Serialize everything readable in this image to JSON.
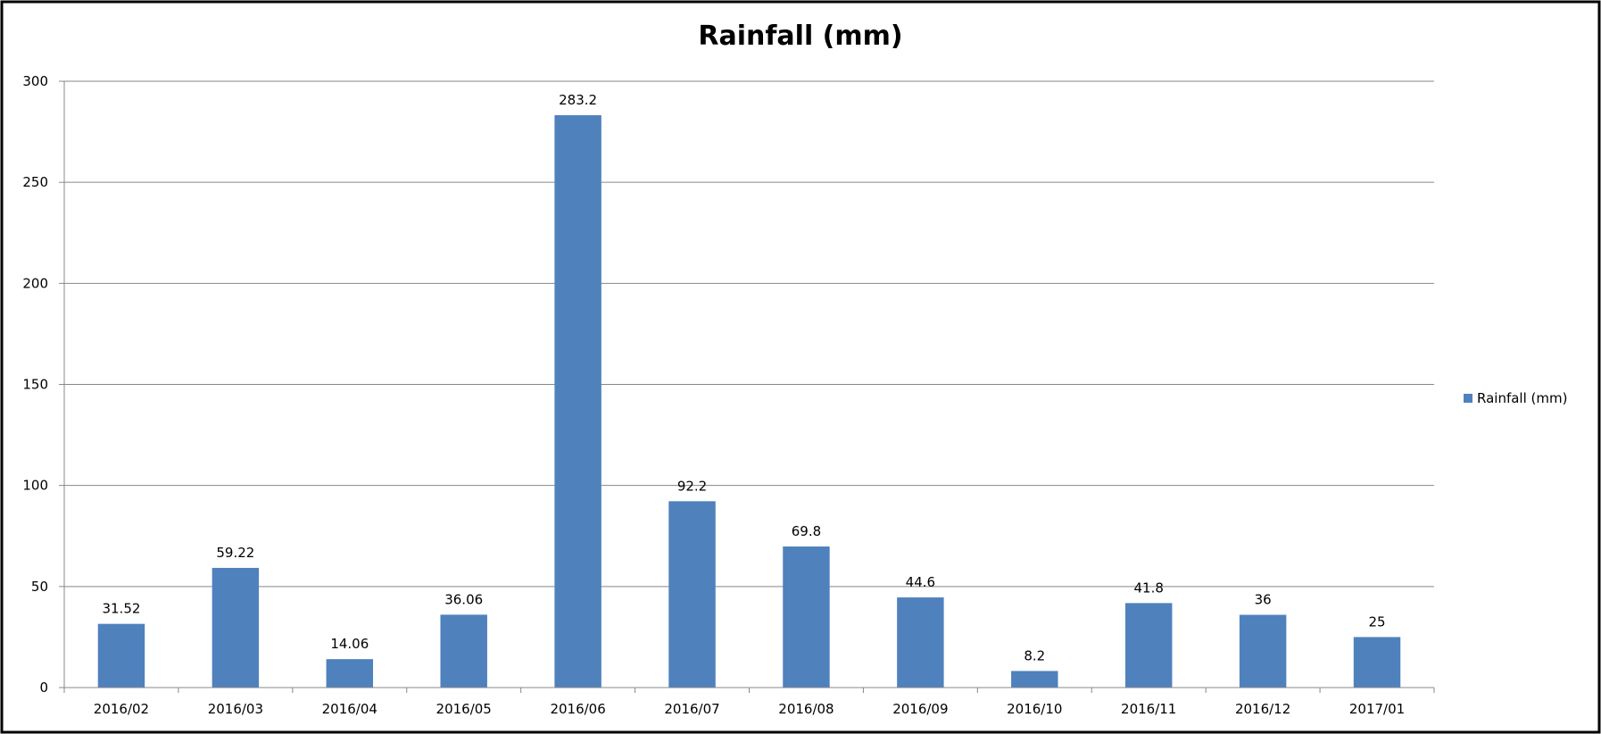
{
  "chart_data": {
    "type": "bar",
    "title": "Rainfall (mm)",
    "xlabel": "",
    "ylabel": "",
    "categories": [
      "2016/02",
      "2016/03",
      "2016/04",
      "2016/05",
      "2016/06",
      "2016/07",
      "2016/08",
      "2016/09",
      "2016/10",
      "2016/11",
      "2016/12",
      "2017/01"
    ],
    "series": [
      {
        "name": "Rainfall (mm)",
        "values": [
          31.52,
          59.22,
          14.06,
          36.06,
          283.2,
          92.2,
          69.8,
          44.6,
          8.2,
          41.8,
          36,
          25
        ],
        "data_labels": [
          "31.52",
          "59.22",
          "14.06",
          "36.06",
          "283.2",
          "92.2",
          "69.8",
          "44.6",
          "8.2",
          "41.8",
          "36",
          "25"
        ]
      }
    ],
    "ylim": [
      0,
      300
    ],
    "yticks": [
      0,
      50,
      100,
      150,
      200,
      250,
      300
    ],
    "ytick_labels": [
      "0",
      "50",
      "100",
      "150",
      "200",
      "250",
      "300"
    ],
    "grid": true,
    "legend": "right",
    "colors": {
      "bar": "#4f81bd",
      "gridline": "#888888",
      "axis": "#888888",
      "border": "#000000"
    }
  }
}
